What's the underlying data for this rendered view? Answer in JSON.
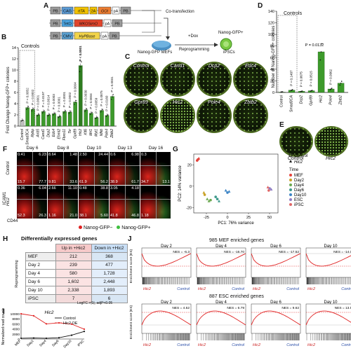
{
  "panel_letters": {
    "a": "A",
    "b": "B",
    "c": "C",
    "d": "D",
    "e": "E",
    "f": "F",
    "g": "G",
    "h": "H",
    "i": "I",
    "j": "J"
  },
  "panel_a": {
    "row1": [
      "PB",
      "CAG",
      "rtTA",
      "2A",
      "GOI",
      "pA",
      "PB"
    ],
    "row2": [
      "PB",
      "TetO",
      "MKOSimO",
      "pA",
      "PB"
    ],
    "row3": [
      "PB",
      "CMV",
      "HyPBase",
      "pA",
      "PB"
    ],
    "cotransfection": "Co-transfection",
    "dox": "+Dox",
    "reprogramming": "Reprogramming",
    "mefs": "Nanog-GFP MEFs",
    "nanog_gfp": "Nanog-GFP+",
    "ipscs": "iPSCs",
    "colors": {
      "pb": "#9a9a9a",
      "cag": "#5b9bd5",
      "rtta": "#f2c200",
      "gene": "#ed7d31",
      "teto": "#4aa3df",
      "mkos": "#e0452c",
      "cmv": "#5aa0d0",
      "hypb": "#f2d44a",
      "pa": "#ffffff"
    }
  },
  "panel_b": {
    "ylabel": "Fold Change Nanog-GFP+ colonies",
    "controls": "Controls",
    "pvals": [
      "P = 0.0052",
      "P = 0.0002",
      "P = 0.0001",
      "P = 0.0197",
      "P = 0.0014",
      "P = 0.0003",
      "P = 0.0001",
      "P = 0.0001",
      "P = 0.0002",
      "P = 0.0004",
      "P < 0.0001",
      "P = 0.0030",
      "P = 0.0004",
      "P = 0.0059",
      "P = 0.0875",
      "P = 0.0160",
      "P = 0.0031"
    ]
  },
  "panel_c": {
    "plates": [
      "Control",
      "Cand1",
      "Dcp2",
      "Edc4",
      "Gpr89",
      "Hic2",
      "Pole4",
      "Zbtb2"
    ]
  },
  "panel_d": {
    "ylabel": "Number of Nanog-GFP+ colonies",
    "controls": "Controls",
    "p_top": "P = 0.0132",
    "pvals": [
      "P = 0.1487",
      "P = 0.0675",
      "P = 0.0515",
      "P = 0.0062"
    ]
  },
  "panel_e": {
    "plates": [
      "Control",
      "Hic2"
    ]
  },
  "panel_f": {
    "days": [
      "Day 6",
      "Day 8",
      "Day 10",
      "Day 13",
      "Day 16"
    ],
    "rows": [
      "Control",
      "Hic2"
    ],
    "ylabel": "ICAM1",
    "xlabel": "CD44",
    "numbers_control": [
      [
        "0.41",
        "6.23"
      ],
      [
        "8.64",
        "1.48"
      ],
      [
        "2.50",
        "24.44"
      ],
      [
        "0.6",
        "6.98"
      ],
      [
        "0.3",
        ""
      ]
    ],
    "numbers_control_bottom": [
      [
        "15.7",
        "77.7"
      ],
      [
        "9.81",
        "33.6"
      ],
      [
        "61.9",
        "56.2"
      ],
      [
        "38.9",
        "61.7"
      ],
      [
        "34.7",
        "13.1"
      ]
    ],
    "numbers_hic2": [
      [
        "0.36",
        "6.04"
      ],
      [
        "2.66",
        "11.10"
      ],
      [
        "0.48",
        "38.8"
      ],
      [
        "3.05",
        "4.18"
      ],
      [
        "",
        ""
      ]
    ],
    "numbers_hic2_bottom": [
      [
        "52.3",
        "26.3"
      ],
      [
        "1.16",
        "21.0"
      ],
      [
        "38.1",
        "5.60"
      ],
      [
        "41.8",
        "46.8"
      ],
      [
        "1.18",
        ""
      ]
    ],
    "legend_neg": "Nanog-GFP−",
    "legend_pos": "Nanog-GFP+",
    "neg_color": "#e02020",
    "pos_color": "#3fbf3f"
  },
  "panel_g": {
    "ylabel": "PC2: 14% variance",
    "xlabel": "PC1: 76% variance",
    "xticks": [
      "-25",
      "0",
      "25",
      "50"
    ],
    "yticks": [
      "20",
      "0",
      "-20"
    ],
    "legend_group": [
      "Control",
      "Hic2"
    ],
    "time_title": "Time",
    "time": [
      {
        "name": "MEF",
        "color": "#e4423b"
      },
      {
        "name": "Day2",
        "color": "#c9a227"
      },
      {
        "name": "Day4",
        "color": "#6aa84f"
      },
      {
        "name": "Day6",
        "color": "#3d9a8b"
      },
      {
        "name": "Day10",
        "color": "#3d85c6"
      },
      {
        "name": "ESC",
        "color": "#8e7cc3"
      },
      {
        "name": "iPSC",
        "color": "#e06666"
      }
    ]
  },
  "panel_h": {
    "title": "Differentially expressed genes",
    "col_up": "Up in +Hic2",
    "col_down": "Down in +Hic2",
    "side": "Reprogramming",
    "rows": [
      {
        "name": "MEF",
        "up": "212",
        "down": "368"
      },
      {
        "name": "Day 2",
        "up": "239",
        "down": "477"
      },
      {
        "name": "Day 4",
        "up": "580",
        "up2": "",
        "down": "1,728"
      },
      {
        "name": "Day 6",
        "up": "1,602",
        "down": "2,448"
      },
      {
        "name": "Day 10",
        "up": "2,338",
        "down": "1,893"
      },
      {
        "name": "iPSC",
        "up": "7",
        "down": "6"
      }
    ],
    "note": "LogFC >|1|, adjP<0.05"
  },
  "panel_i": {
    "title": "Hic2",
    "ylabel": "Normalized read counts",
    "yticks": [
      "10000",
      "8000",
      "6000",
      "4000",
      "2000",
      "0"
    ],
    "legend": [
      "Control",
      "Hic2 OE"
    ],
    "colors": [
      "#111111",
      "#e02020"
    ]
  },
  "panel_j": {
    "title_top": "985 MEF enriched genes",
    "title_bottom": "887 ESC enriched genes",
    "days": [
      "Day 2",
      "Day 4",
      "Day 6",
      "Day 10"
    ],
    "nes_top": [
      "NES = -6.3",
      "NES = -16.70",
      "NES = -17.52",
      "NES = -14.08"
    ],
    "nes_bottom": [
      "NES = 4.52",
      "NES = 6.79",
      "NES = 9.62",
      "NES = 13.56"
    ],
    "ylabel": "Enrichment score (ES)",
    "left": "Hic2",
    "right": "Control"
  },
  "chart_data": [
    {
      "type": "bar",
      "id": "B",
      "categories": [
        "Control",
        "Smad3CA",
        "Rybp",
        "Arid5",
        "Cand1",
        "Dcp2",
        "Edc4",
        "Ehmt2",
        "Fbxo11",
        "Tsr",
        "Gpr89",
        "Hic2",
        "Klf6",
        "Mrl1",
        "Myt1",
        "Nfkb",
        "Pole4",
        "Zbtb2"
      ],
      "values": [
        1.0,
        3.3,
        3.0,
        2.0,
        2.6,
        2.0,
        2.2,
        1.7,
        2.6,
        2.5,
        4.3,
        10.8,
        2.9,
        2.3,
        1.5,
        2.8,
        1.9,
        5.3
      ],
      "ylabel": "Fold Change Nanog-GFP+ colonies",
      "ylim": [
        0,
        14
      ],
      "yticks": [
        0,
        2,
        4,
        6,
        8,
        10,
        12,
        14
      ]
    },
    {
      "type": "bar",
      "id": "D",
      "categories": [
        "Control",
        "Smad3CA",
        "Dcp2",
        "Gpr89",
        "Hic2",
        "Pole4",
        "Zbtb2"
      ],
      "values": [
        1,
        4,
        2,
        3,
        70,
        6,
        16
      ],
      "ylabel": "Number of Nanog-GFP+ colonies",
      "ylim": [
        0,
        140
      ],
      "yticks": [
        0,
        20,
        40,
        60,
        80,
        100,
        120,
        140
      ]
    },
    {
      "type": "line",
      "id": "I",
      "categories": [
        "MEF",
        "Day2",
        "Day4",
        "Day6",
        "Day10",
        "iPSC"
      ],
      "series": [
        {
          "name": "Control",
          "values": [
            300,
            400,
            300,
            500,
            1500,
            3000
          ]
        },
        {
          "name": "Hic2 OE",
          "values": [
            10000,
            9200,
            6000,
            6400,
            5900,
            3900
          ]
        }
      ],
      "ylim": [
        0,
        10000
      ]
    }
  ]
}
